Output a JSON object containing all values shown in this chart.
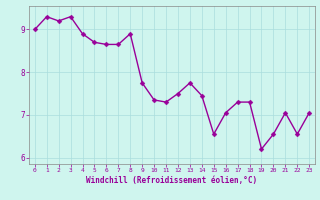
{
  "x": [
    0,
    1,
    2,
    3,
    4,
    5,
    6,
    7,
    8,
    9,
    10,
    11,
    12,
    13,
    14,
    15,
    16,
    17,
    18,
    19,
    20,
    21,
    22,
    23
  ],
  "y": [
    9.0,
    9.3,
    9.2,
    9.3,
    8.9,
    8.7,
    8.65,
    8.65,
    8.9,
    7.75,
    7.35,
    7.3,
    7.5,
    7.75,
    7.45,
    6.55,
    7.05,
    7.3,
    7.3,
    6.2,
    6.55,
    7.05,
    6.55,
    7.05
  ],
  "line_color": "#990099",
  "marker": "D",
  "marker_size": 2.5,
  "background_color": "#cff5ee",
  "grid_color": "#aadddd",
  "xlabel": "Windchill (Refroidissement éolien,°C)",
  "xlabel_color": "#990099",
  "tick_color": "#990099",
  "ylim": [
    5.85,
    9.55
  ],
  "xlim": [
    -0.5,
    23.5
  ],
  "yticks": [
    6,
    7,
    8,
    9
  ],
  "xticks": [
    0,
    1,
    2,
    3,
    4,
    5,
    6,
    7,
    8,
    9,
    10,
    11,
    12,
    13,
    14,
    15,
    16,
    17,
    18,
    19,
    20,
    21,
    22,
    23
  ],
  "linewidth": 1.0
}
